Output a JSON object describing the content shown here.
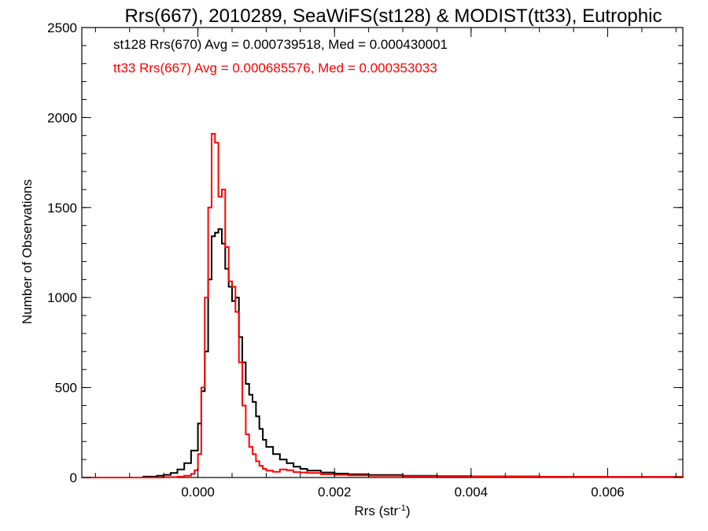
{
  "chart_data": {
    "type": "histogram-step",
    "title": "Rrs(667), 2010289, SeaWiFS(st128) & MODIST(tt33), Eutrophic",
    "xlabel_main": "Rrs (str",
    "xlabel_sup": "-1",
    "xlabel_close": ")",
    "ylabel": "Number of Observations",
    "xlim": [
      -0.0017,
      0.0071
    ],
    "ylim": [
      0,
      2500
    ],
    "x_ticks": [
      0.0,
      0.002,
      0.004,
      0.006
    ],
    "x_tick_labels": [
      "0.000",
      "0.002",
      "0.004",
      "0.006"
    ],
    "y_ticks": [
      0,
      500,
      1000,
      1500,
      2000,
      2500
    ],
    "y_tick_labels": [
      "0",
      "500",
      "1000",
      "1500",
      "2000",
      "2500"
    ],
    "x_minor_step": 0.0005,
    "y_minor_step": 100,
    "annotations": [
      {
        "text": "st128 Rrs(670) Avg = 0.000739518, Med = 0.000430001",
        "color": "#000000"
      },
      {
        "text": "tt33 Rrs(667) Avg = 0.000685576, Med = 0.000353033",
        "color": "#ff0000"
      }
    ],
    "series": [
      {
        "color": "#000000",
        "x": [
          -0.0017,
          -0.0008,
          -0.0006,
          -0.0005,
          -0.0004,
          -0.0003,
          -0.0002,
          -0.0001,
          0.0,
          5e-05,
          0.0001,
          0.00015,
          0.0002,
          0.00025,
          0.0003,
          0.00035,
          0.0004,
          0.00045,
          0.0005,
          0.00055,
          0.0006,
          0.00065,
          0.0007,
          0.00075,
          0.0008,
          0.00085,
          0.0009,
          0.00095,
          0.001,
          0.0011,
          0.0012,
          0.0013,
          0.0014,
          0.0015,
          0.0016,
          0.0018,
          0.002,
          0.0022,
          0.0025,
          0.003,
          0.0035,
          0.004,
          0.005,
          0.006,
          0.0071
        ],
        "y": [
          0,
          5,
          10,
          15,
          25,
          45,
          80,
          150,
          300,
          480,
          700,
          1100,
          1340,
          1360,
          1380,
          1300,
          1160,
          1060,
          980,
          1000,
          780,
          640,
          520,
          460,
          420,
          340,
          270,
          210,
          170,
          130,
          100,
          80,
          60,
          48,
          38,
          28,
          22,
          18,
          14,
          10,
          8,
          6,
          4,
          3,
          2
        ]
      },
      {
        "color": "#ff0000",
        "x": [
          -0.0017,
          -0.0005,
          -0.0003,
          -0.0002,
          -0.0001,
          -5e-05,
          0.0,
          5e-05,
          0.0001,
          0.00015,
          0.0002,
          0.00025,
          0.0003,
          0.00035,
          0.0004,
          0.00045,
          0.0005,
          0.00055,
          0.0006,
          0.00065,
          0.0007,
          0.00075,
          0.0008,
          0.00085,
          0.0009,
          0.00095,
          0.001,
          0.0011,
          0.0012,
          0.0013,
          0.0014,
          0.0015,
          0.0016,
          0.0018,
          0.002,
          0.0022,
          0.0025,
          0.003,
          0.0035,
          0.004,
          0.005,
          0.006,
          0.0071
        ],
        "y": [
          0,
          2,
          5,
          10,
          20,
          40,
          130,
          500,
          1000,
          1500,
          1910,
          1860,
          1560,
          1600,
          1280,
          1090,
          1060,
          920,
          640,
          400,
          240,
          170,
          130,
          90,
          65,
          48,
          38,
          32,
          45,
          40,
          30,
          28,
          25,
          18,
          15,
          12,
          10,
          8,
          6,
          5,
          4,
          3,
          2
        ]
      }
    ]
  }
}
